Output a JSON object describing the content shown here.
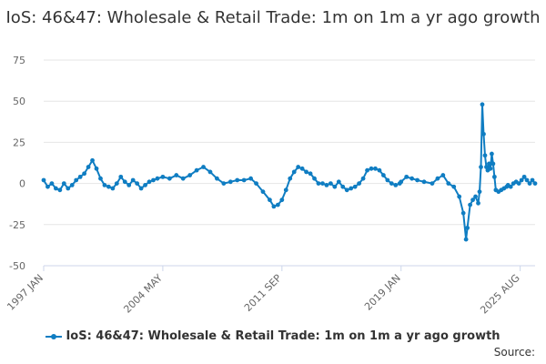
{
  "chart_data": {
    "type": "line",
    "title": "IoS: 46&47: Wholesale & Retail Trade: 1m on 1m a yr ago growth",
    "xlabel": "",
    "ylabel": "",
    "x_tick_labels": [
      "1997 JAN",
      "2004 MAY",
      "2011 SEP",
      "2019 JAN",
      "2025 AUG"
    ],
    "y_ticks": [
      -50,
      -25,
      0,
      25,
      50,
      75
    ],
    "ylim": [
      -50,
      75
    ],
    "grid": "horizontal",
    "legend_position": "bottom",
    "line_color": "#0f7dc2",
    "series": [
      {
        "name": "IoS: 46&47: Wholesale & Retail Trade: 1m on 1m a yr ago growth",
        "points": [
          [
            "1997-01",
            2
          ],
          [
            "1997-04",
            -2
          ],
          [
            "1997-07",
            0
          ],
          [
            "1997-10",
            -3
          ],
          [
            "1998-01",
            -4
          ],
          [
            "1998-04",
            0
          ],
          [
            "1998-07",
            -3
          ],
          [
            "1998-10",
            -1
          ],
          [
            "1999-01",
            2
          ],
          [
            "1999-04",
            4
          ],
          [
            "1999-07",
            6
          ],
          [
            "1999-10",
            10
          ],
          [
            "2000-01",
            14
          ],
          [
            "2000-04",
            9
          ],
          [
            "2000-07",
            3
          ],
          [
            "2000-10",
            -1
          ],
          [
            "2001-01",
            -2
          ],
          [
            "2001-04",
            -3
          ],
          [
            "2001-07",
            0
          ],
          [
            "2001-10",
            4
          ],
          [
            "2002-01",
            1
          ],
          [
            "2002-04",
            -1
          ],
          [
            "2002-07",
            2
          ],
          [
            "2002-10",
            0
          ],
          [
            "2003-01",
            -3
          ],
          [
            "2003-04",
            -1
          ],
          [
            "2003-07",
            1
          ],
          [
            "2003-10",
            2
          ],
          [
            "2004-01",
            3
          ],
          [
            "2004-05",
            4
          ],
          [
            "2004-10",
            3
          ],
          [
            "2005-03",
            5
          ],
          [
            "2005-08",
            3
          ],
          [
            "2006-01",
            5
          ],
          [
            "2006-06",
            8
          ],
          [
            "2006-11",
            10
          ],
          [
            "2007-04",
            7
          ],
          [
            "2007-09",
            3
          ],
          [
            "2008-02",
            0
          ],
          [
            "2008-07",
            1
          ],
          [
            "2008-12",
            2
          ],
          [
            "2009-05",
            2
          ],
          [
            "2009-10",
            3
          ],
          [
            "2010-02",
            0
          ],
          [
            "2010-07",
            -5
          ],
          [
            "2010-12",
            -10
          ],
          [
            "2011-03",
            -14
          ],
          [
            "2011-06",
            -13
          ],
          [
            "2011-09",
            -10
          ],
          [
            "2011-12",
            -4
          ],
          [
            "2012-03",
            3
          ],
          [
            "2012-06",
            7
          ],
          [
            "2012-09",
            10
          ],
          [
            "2012-12",
            9
          ],
          [
            "2013-03",
            7
          ],
          [
            "2013-06",
            6
          ],
          [
            "2013-09",
            3
          ],
          [
            "2013-12",
            0
          ],
          [
            "2014-03",
            0
          ],
          [
            "2014-06",
            -1
          ],
          [
            "2014-09",
            0
          ],
          [
            "2014-12",
            -2
          ],
          [
            "2015-03",
            1
          ],
          [
            "2015-06",
            -2
          ],
          [
            "2015-09",
            -4
          ],
          [
            "2015-12",
            -3
          ],
          [
            "2016-03",
            -2
          ],
          [
            "2016-06",
            0
          ],
          [
            "2016-09",
            3
          ],
          [
            "2016-12",
            8
          ],
          [
            "2017-03",
            9
          ],
          [
            "2017-06",
            9
          ],
          [
            "2017-09",
            8
          ],
          [
            "2017-12",
            5
          ],
          [
            "2018-03",
            2
          ],
          [
            "2018-06",
            0
          ],
          [
            "2018-09",
            -1
          ],
          [
            "2018-12",
            0
          ],
          [
            "2019-01",
            1
          ],
          [
            "2019-05",
            4
          ],
          [
            "2019-09",
            3
          ],
          [
            "2020-01",
            2
          ],
          [
            "2020-06",
            1
          ],
          [
            "2020-12",
            0
          ],
          [
            "2021-04",
            3
          ],
          [
            "2021-08",
            5
          ],
          [
            "2021-12",
            0
          ],
          [
            "2022-04",
            -2
          ],
          [
            "2022-08",
            -8
          ],
          [
            "2022-11",
            -18
          ],
          [
            "2023-01",
            -34
          ],
          [
            "2023-02",
            -27
          ],
          [
            "2023-04",
            -13
          ],
          [
            "2023-06",
            -10
          ],
          [
            "2023-08",
            -8
          ],
          [
            "2023-10",
            -12
          ],
          [
            "2023-11",
            -5
          ],
          [
            "2023-12",
            10
          ],
          [
            "2024-01",
            48
          ],
          [
            "2024-02",
            30
          ],
          [
            "2024-03",
            17
          ],
          [
            "2024-04",
            10
          ],
          [
            "2024-05",
            8
          ],
          [
            "2024-06",
            12
          ],
          [
            "2024-07",
            9
          ],
          [
            "2024-08",
            18
          ],
          [
            "2024-09",
            12
          ],
          [
            "2024-10",
            4
          ],
          [
            "2024-11",
            -4
          ],
          [
            "2025-01",
            -5
          ],
          [
            "2025-03",
            -4
          ],
          [
            "2025-05",
            -3
          ],
          [
            "2025-07",
            -2
          ],
          [
            "2025-08",
            -1
          ],
          [
            "2025-10",
            -2
          ],
          [
            "2025-12",
            0
          ],
          [
            "2026-02",
            1
          ],
          [
            "2026-04",
            0
          ],
          [
            "2026-06",
            2
          ],
          [
            "2026-08",
            4
          ],
          [
            "2026-10",
            2
          ],
          [
            "2026-12",
            0
          ],
          [
            "2027-02",
            2
          ],
          [
            "2027-04",
            0
          ]
        ]
      }
    ]
  },
  "source_label": "Source:"
}
